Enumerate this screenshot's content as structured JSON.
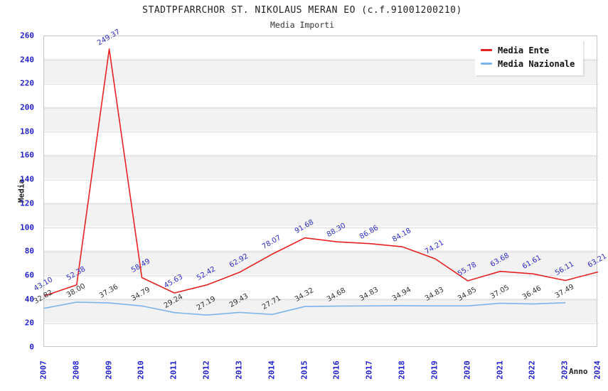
{
  "title": "STADTPFARRCHOR ST. NIKOLAUS MERAN EO (c.f.91001200210)",
  "subtitle": "Media Importi",
  "chart_data": {
    "type": "line",
    "title": "STADTPFARRCHOR ST. NIKOLAUS MERAN EO (c.f.91001200210)",
    "subtitle": "Media Importi",
    "xlabel": "Anno",
    "ylabel": "Media",
    "categories": [
      "2007",
      "2008",
      "2009",
      "2010",
      "2011",
      "2012",
      "2013",
      "2014",
      "2015",
      "2016",
      "2017",
      "2018",
      "2019",
      "2020",
      "2021",
      "2022",
      "2023",
      "2024"
    ],
    "series": [
      {
        "name": "Media Nazionale",
        "color": "#7cb5ec",
        "label_color": "#333333",
        "values": [
          32.82,
          38.0,
          37.36,
          34.79,
          29.24,
          27.19,
          29.43,
          27.71,
          34.32,
          34.68,
          34.83,
          34.94,
          34.83,
          34.85,
          37.05,
          36.46,
          37.49,
          null
        ]
      },
      {
        "name": "Media Ente",
        "color": "#e62222",
        "label_color": "#2d2dc8",
        "values": [
          43.1,
          52.38,
          249.37,
          58.49,
          45.63,
          52.42,
          62.92,
          78.07,
          91.68,
          88.3,
          86.86,
          84.18,
          74.21,
          55.78,
          63.68,
          61.61,
          56.11,
          63.21
        ]
      }
    ],
    "ylim": [
      0,
      260
    ],
    "y_ticks": [
      0,
      20,
      40,
      60,
      80,
      100,
      120,
      140,
      160,
      180,
      200,
      220,
      240,
      260
    ],
    "grid": true,
    "legend_position": "top-right",
    "colors": {
      "axis_tick_text": "#1f1fd0",
      "grid_line": "#d9d9d9",
      "plot_border": "#c6c6c6",
      "band_fill": "#f2f2f2",
      "title_text": "#222222"
    }
  }
}
